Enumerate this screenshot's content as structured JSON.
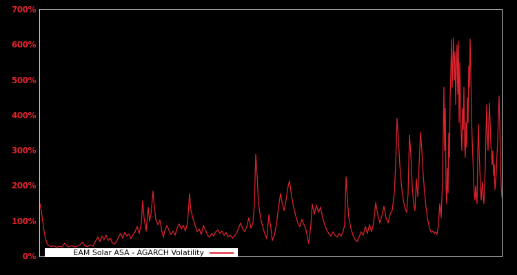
{
  "window": {
    "background": "#000000"
  },
  "chart_data": {
    "type": "line",
    "title": "",
    "grid": false,
    "legend": {
      "label": "EAM Solar ASA - AGARCH Volatility",
      "position": "lower-left",
      "swatch": "red-line"
    },
    "colors": {
      "line": "#dc232e",
      "tick_label": "#dc232e",
      "plot_border": "#dedede",
      "background": "#000000",
      "legend_bg": "#ffffff",
      "legend_text": "#000000"
    },
    "y_axis": {
      "unit": "%",
      "range": [
        0,
        700
      ],
      "tick_values": [
        0,
        100,
        200,
        300,
        400,
        500,
        600,
        700
      ],
      "ticks": [
        "0%",
        "100%",
        "200%",
        "300%",
        "400%",
        "500%",
        "600%",
        "700%"
      ]
    },
    "x_axis": {
      "ticks": [],
      "note": "no visible x-axis labels; point x is position 0-670 across plot width"
    },
    "series": [
      {
        "name": "EAM Solar ASA - AGARCH Volatility",
        "color": "#dc232e",
        "unit": "%",
        "points": [
          [
            0,
            150
          ],
          [
            2,
            128
          ],
          [
            4,
            100
          ],
          [
            6,
            70
          ],
          [
            8,
            50
          ],
          [
            10,
            38
          ],
          [
            12,
            32
          ],
          [
            16,
            28
          ],
          [
            20,
            30
          ],
          [
            24,
            26
          ],
          [
            28,
            29
          ],
          [
            32,
            27
          ],
          [
            36,
            38
          ],
          [
            39,
            30
          ],
          [
            42,
            27
          ],
          [
            46,
            31
          ],
          [
            50,
            27
          ],
          [
            54,
            29
          ],
          [
            58,
            33
          ],
          [
            62,
            41
          ],
          [
            65,
            30
          ],
          [
            69,
            28
          ],
          [
            73,
            33
          ],
          [
            77,
            29
          ],
          [
            81,
            45
          ],
          [
            84,
            55
          ],
          [
            87,
            42
          ],
          [
            90,
            58
          ],
          [
            93,
            48
          ],
          [
            96,
            60
          ],
          [
            99,
            45
          ],
          [
            102,
            52
          ],
          [
            105,
            38
          ],
          [
            108,
            35
          ],
          [
            111,
            42
          ],
          [
            114,
            55
          ],
          [
            117,
            65
          ],
          [
            120,
            52
          ],
          [
            123,
            68
          ],
          [
            126,
            58
          ],
          [
            129,
            64
          ],
          [
            132,
            50
          ],
          [
            135,
            62
          ],
          [
            138,
            70
          ],
          [
            141,
            85
          ],
          [
            144,
            65
          ],
          [
            147,
            95
          ],
          [
            149,
            158
          ],
          [
            151,
            110
          ],
          [
            154,
            72
          ],
          [
            157,
            139
          ],
          [
            159,
            100
          ],
          [
            161,
            120
          ],
          [
            164,
            185
          ],
          [
            166,
            140
          ],
          [
            168,
            105
          ],
          [
            171,
            90
          ],
          [
            174,
            103
          ],
          [
            177,
            70
          ],
          [
            179,
            55
          ],
          [
            181,
            72
          ],
          [
            184,
            88
          ],
          [
            187,
            75
          ],
          [
            190,
            62
          ],
          [
            193,
            72
          ],
          [
            196,
            60
          ],
          [
            199,
            80
          ],
          [
            202,
            92
          ],
          [
            205,
            78
          ],
          [
            208,
            88
          ],
          [
            211,
            72
          ],
          [
            214,
            95
          ],
          [
            217,
            178
          ],
          [
            219,
            130
          ],
          [
            222,
            108
          ],
          [
            225,
            88
          ],
          [
            228,
            70
          ],
          [
            231,
            78
          ],
          [
            234,
            62
          ],
          [
            237,
            88
          ],
          [
            240,
            75
          ],
          [
            243,
            60
          ],
          [
            246,
            55
          ],
          [
            249,
            65
          ],
          [
            252,
            58
          ],
          [
            255,
            70
          ],
          [
            258,
            75
          ],
          [
            261,
            65
          ],
          [
            264,
            72
          ],
          [
            267,
            60
          ],
          [
            270,
            68
          ],
          [
            273,
            55
          ],
          [
            276,
            60
          ],
          [
            279,
            52
          ],
          [
            282,
            58
          ],
          [
            285,
            65
          ],
          [
            288,
            80
          ],
          [
            291,
            95
          ],
          [
            294,
            78
          ],
          [
            297,
            70
          ],
          [
            300,
            85
          ],
          [
            303,
            110
          ],
          [
            306,
            80
          ],
          [
            309,
            95
          ],
          [
            311,
            150
          ],
          [
            313,
            290
          ],
          [
            315,
            230
          ],
          [
            317,
            150
          ],
          [
            320,
            110
          ],
          [
            323,
            85
          ],
          [
            326,
            65
          ],
          [
            329,
            50
          ],
          [
            332,
            118
          ],
          [
            335,
            80
          ],
          [
            337,
            45
          ],
          [
            340,
            60
          ],
          [
            343,
            90
          ],
          [
            346,
            140
          ],
          [
            349,
            178
          ],
          [
            351,
            155
          ],
          [
            354,
            130
          ],
          [
            357,
            160
          ],
          [
            360,
            200
          ],
          [
            362,
            214
          ],
          [
            365,
            170
          ],
          [
            368,
            140
          ],
          [
            371,
            115
          ],
          [
            374,
            95
          ],
          [
            377,
            85
          ],
          [
            380,
            105
          ],
          [
            383,
            90
          ],
          [
            386,
            75
          ],
          [
            388,
            55
          ],
          [
            390,
            36
          ],
          [
            393,
            90
          ],
          [
            395,
            148
          ],
          [
            398,
            120
          ],
          [
            401,
            145
          ],
          [
            404,
            125
          ],
          [
            407,
            140
          ],
          [
            410,
            110
          ],
          [
            413,
            90
          ],
          [
            416,
            75
          ],
          [
            419,
            65
          ],
          [
            422,
            58
          ],
          [
            425,
            70
          ],
          [
            428,
            60
          ],
          [
            431,
            55
          ],
          [
            434,
            65
          ],
          [
            437,
            58
          ],
          [
            440,
            72
          ],
          [
            442,
            90
          ],
          [
            444,
            226
          ],
          [
            446,
            160
          ],
          [
            448,
            110
          ],
          [
            451,
            80
          ],
          [
            454,
            60
          ],
          [
            457,
            48
          ],
          [
            460,
            42
          ],
          [
            463,
            55
          ],
          [
            466,
            70
          ],
          [
            469,
            60
          ],
          [
            472,
            85
          ],
          [
            475,
            65
          ],
          [
            478,
            90
          ],
          [
            481,
            70
          ],
          [
            484,
            95
          ],
          [
            487,
            152
          ],
          [
            490,
            120
          ],
          [
            493,
            95
          ],
          [
            496,
            115
          ],
          [
            499,
            142
          ],
          [
            502,
            110
          ],
          [
            505,
            95
          ],
          [
            508,
            120
          ],
          [
            511,
            130
          ],
          [
            514,
            180
          ],
          [
            516,
            260
          ],
          [
            518,
            392
          ],
          [
            520,
            330
          ],
          [
            522,
            260
          ],
          [
            524,
            210
          ],
          [
            526,
            175
          ],
          [
            528,
            150
          ],
          [
            530,
            135
          ],
          [
            532,
            125
          ],
          [
            534,
            180
          ],
          [
            536,
            345
          ],
          [
            538,
            290
          ],
          [
            540,
            200
          ],
          [
            542,
            150
          ],
          [
            544,
            130
          ],
          [
            546,
            220
          ],
          [
            548,
            170
          ],
          [
            550,
            260
          ],
          [
            552,
            352
          ],
          [
            554,
            300
          ],
          [
            556,
            230
          ],
          [
            558,
            180
          ],
          [
            560,
            140
          ],
          [
            562,
            110
          ],
          [
            564,
            90
          ],
          [
            566,
            75
          ],
          [
            568,
            68
          ],
          [
            570,
            72
          ],
          [
            572,
            65
          ],
          [
            574,
            70
          ],
          [
            576,
            62
          ],
          [
            578,
            90
          ],
          [
            580,
            150
          ],
          [
            582,
            110
          ],
          [
            584,
            220
          ],
          [
            586,
            480
          ],
          [
            587,
            300
          ],
          [
            588,
            420
          ],
          [
            589,
            200
          ],
          [
            590,
            150
          ],
          [
            591,
            250
          ],
          [
            592,
            180
          ],
          [
            593,
            350
          ],
          [
            594,
            280
          ],
          [
            595,
            450
          ],
          [
            596,
            520
          ],
          [
            597,
            615
          ],
          [
            598,
            480
          ],
          [
            599,
            560
          ],
          [
            600,
            620
          ],
          [
            601,
            500
          ],
          [
            602,
            580
          ],
          [
            603,
            430
          ],
          [
            604,
            540
          ],
          [
            605,
            600
          ],
          [
            606,
            460
          ],
          [
            607,
            610
          ],
          [
            608,
            380
          ],
          [
            609,
            550
          ],
          [
            610,
            420
          ],
          [
            611,
            350
          ],
          [
            612,
            300
          ],
          [
            613,
            420
          ],
          [
            614,
            360
          ],
          [
            615,
            480
          ],
          [
            616,
            320
          ],
          [
            617,
            280
          ],
          [
            618,
            380
          ],
          [
            619,
            310
          ],
          [
            620,
            450
          ],
          [
            621,
            380
          ],
          [
            622,
            540
          ],
          [
            623,
            480
          ],
          [
            624,
            617
          ],
          [
            625,
            520
          ],
          [
            626,
            400
          ],
          [
            627,
            330
          ],
          [
            628,
            280
          ],
          [
            629,
            220
          ],
          [
            630,
            180
          ],
          [
            631,
            160
          ],
          [
            632,
            200
          ],
          [
            633,
            170
          ],
          [
            634,
            150
          ],
          [
            635,
            280
          ],
          [
            636,
            375
          ],
          [
            637,
            300
          ],
          [
            638,
            250
          ],
          [
            639,
            200
          ],
          [
            640,
            160
          ],
          [
            641,
            190
          ],
          [
            642,
            210
          ],
          [
            643,
            170
          ],
          [
            644,
            150
          ],
          [
            645,
            200
          ],
          [
            646,
            260
          ],
          [
            647,
            350
          ],
          [
            648,
            430
          ],
          [
            649,
            350
          ],
          [
            650,
            300
          ],
          [
            651,
            380
          ],
          [
            652,
            435
          ],
          [
            653,
            380
          ],
          [
            654,
            320
          ],
          [
            655,
            290
          ],
          [
            656,
            260
          ],
          [
            657,
            300
          ],
          [
            658,
            230
          ],
          [
            659,
            260
          ],
          [
            660,
            190
          ],
          [
            661,
            210
          ],
          [
            662,
            240
          ],
          [
            663,
            290
          ],
          [
            664,
            330
          ],
          [
            665,
            400
          ],
          [
            666,
            455
          ],
          [
            667,
            380
          ],
          [
            668,
            280
          ],
          [
            669,
            200
          ],
          [
            670,
            168
          ]
        ]
      }
    ]
  }
}
